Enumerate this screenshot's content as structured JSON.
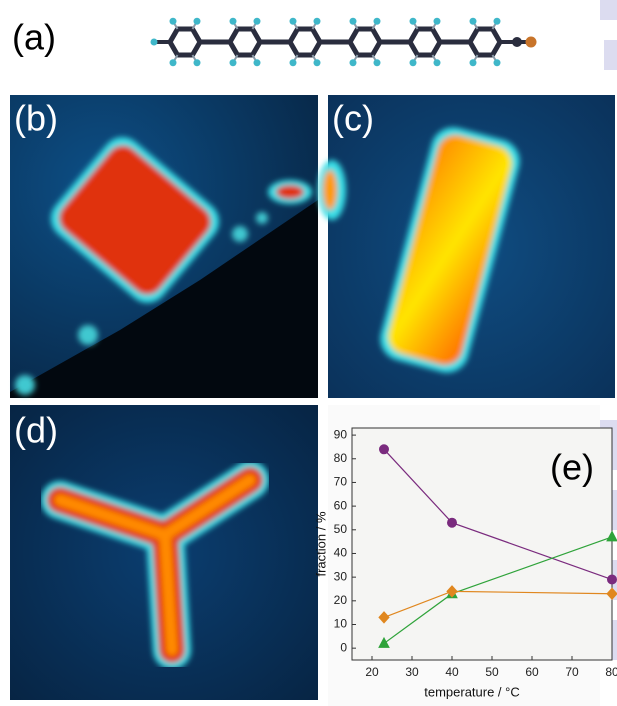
{
  "panels": [
    "(a)",
    "(b)",
    "(c)",
    "(d)",
    "(e)"
  ],
  "chart_data": {
    "type": "line",
    "x_label": "temperature / °C",
    "y_label": "fraction / %",
    "x": [
      23,
      40,
      80
    ],
    "series": [
      {
        "color": "#7a2b7e",
        "marker": "circle",
        "values": [
          84,
          53,
          29
        ]
      },
      {
        "color": "#2fa33a",
        "marker": "triangle",
        "values": [
          2,
          23,
          47
        ]
      },
      {
        "color": "#e0871f",
        "marker": "diamond",
        "values": [
          13,
          24,
          23
        ]
      }
    ],
    "xlim": [
      15,
      80
    ],
    "xticks": [
      20,
      30,
      40,
      50,
      60,
      70,
      80
    ],
    "ylim": [
      -5,
      93
    ],
    "yticks": [
      0,
      10,
      20,
      30,
      40,
      50,
      60,
      70,
      80,
      90
    ],
    "grid": false
  }
}
